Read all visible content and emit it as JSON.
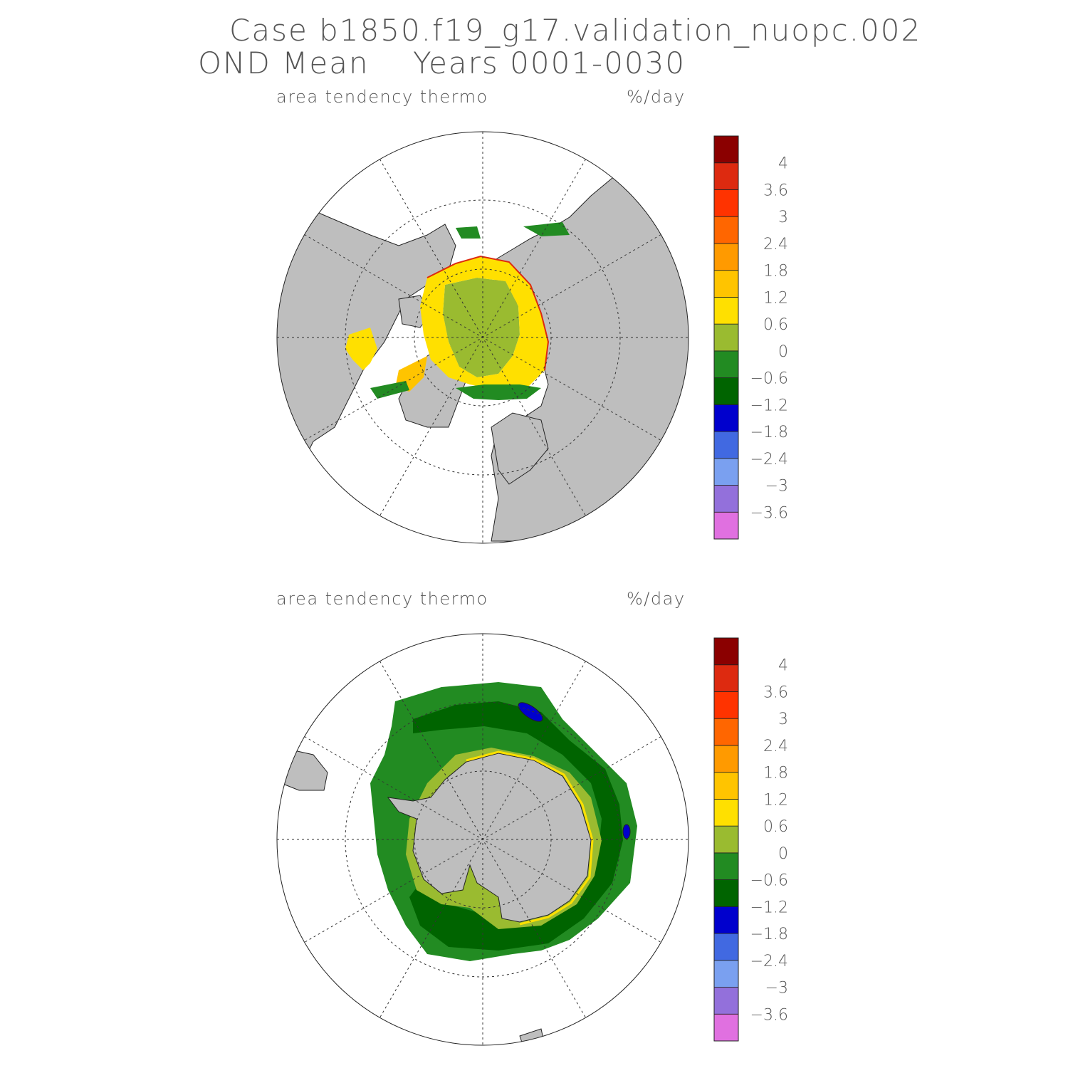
{
  "title": {
    "line1": "Case b1850.f19_g17.validation_nuopc.002",
    "line2": "OND Mean    Years 0001-0030"
  },
  "panels": [
    {
      "id": "north",
      "variable": "area tendency thermo",
      "units": "%/day",
      "hemisphere": "north"
    },
    {
      "id": "south",
      "variable": "area tendency thermo",
      "units": "%/day",
      "hemisphere": "south"
    }
  ],
  "colorbar": {
    "colors": [
      "#e070e0",
      "#9370db",
      "#7aa0f0",
      "#4169e1",
      "#0000cd",
      "#006400",
      "#228b22",
      "#9abb30",
      "#ffe000",
      "#ffc400",
      "#ff9a00",
      "#ff6600",
      "#ff3300",
      "#dd2a10",
      "#8b0000"
    ],
    "labels": [
      "-3.6",
      "-3",
      "-2.4",
      "-1.8",
      "-1.2",
      "-0.6",
      "0",
      "0.6",
      "1.2",
      "1.8",
      "2.4",
      "3",
      "3.6",
      "4"
    ]
  },
  "map_colors": {
    "land": "#bebebe",
    "ocean": "#ffffff"
  }
}
